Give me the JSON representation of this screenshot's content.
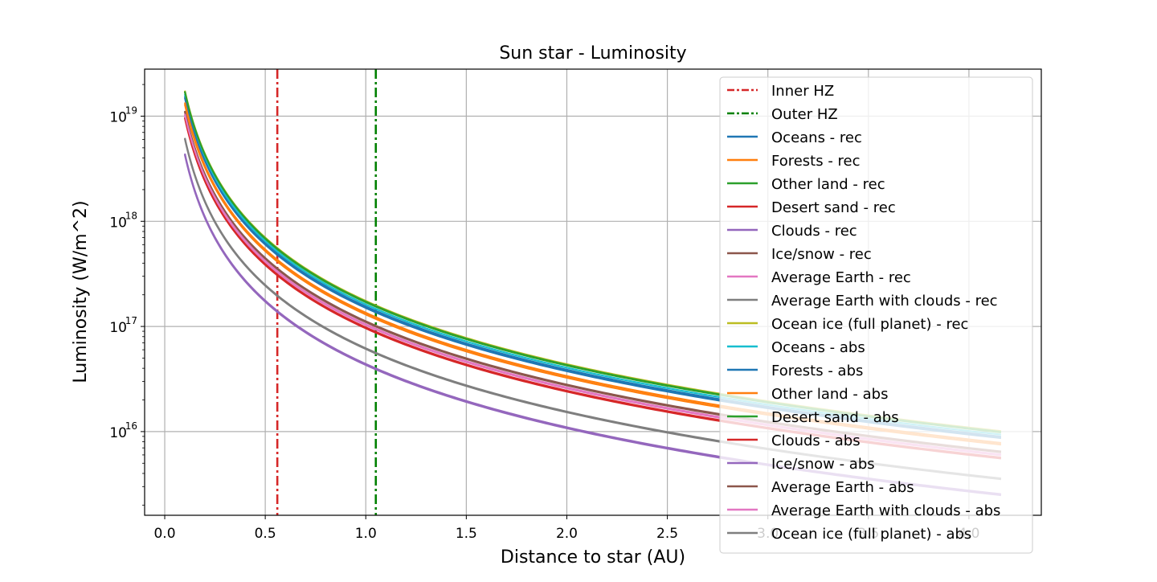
{
  "chart_data": {
    "type": "line",
    "title": "Sun star - Luminosity",
    "xlabel": "Distance to star (AU)",
    "ylabel": "Luminosity (W/m^2)",
    "xlim": [
      -0.1,
      4.36
    ],
    "ylim": [
      1600000000000000.0,
      2.8e+19
    ],
    "yscale": "log",
    "grid": true,
    "legend_position": "top-right",
    "x_ticks": [
      0,
      0.5,
      1.0,
      1.5,
      2.0,
      2.5,
      3.0,
      3.5,
      4.0
    ],
    "x_tick_labels": [
      "0.0",
      "0.5",
      "1.0",
      "1.5",
      "2.0",
      "2.5",
      "3.0",
      "3.5",
      "4.0"
    ],
    "y_ticks": [
      1e+16,
      1e+17,
      1e+18,
      1e+19
    ],
    "y_tick_labels": [
      {
        "base": "10",
        "exp": "16"
      },
      {
        "base": "10",
        "exp": "17"
      },
      {
        "base": "10",
        "exp": "18"
      },
      {
        "base": "10",
        "exp": "19"
      }
    ],
    "vlines": [
      {
        "name": "Inner HZ",
        "x": 0.56,
        "color": "#d62728",
        "style": "dashdot"
      },
      {
        "name": "Outer HZ",
        "x": 1.05,
        "color": "#008000",
        "style": "dashdot"
      }
    ],
    "curve_model": "y = a / x^2",
    "x_range": [
      0.1,
      4.16
    ],
    "series": [
      {
        "name": "Oceans - rec",
        "color": "#1f77b4",
        "a": 1.55e+17
      },
      {
        "name": "Forests - rec",
        "color": "#ff7f0e",
        "a": 1.3e+17
      },
      {
        "name": "Other land - rec",
        "color": "#2ca02c",
        "a": 1.7e+17
      },
      {
        "name": "Desert sand - rec",
        "color": "#d62728",
        "a": 9.8e+16
      },
      {
        "name": "Clouds - rec",
        "color": "#9467bd",
        "a": 4.4e+16
      },
      {
        "name": "Ice/snow - rec",
        "color": "#8c564b",
        "a": 1.1e+17
      },
      {
        "name": "Average Earth - rec",
        "color": "#e377c2",
        "a": 1.03e+17
      },
      {
        "name": "Average Earth with clouds - rec",
        "color": "#7f7f7f",
        "a": 6.2e+16
      },
      {
        "name": "Ocean ice (full planet) - rec",
        "color": "#bcbd22",
        "a": 1.75e+17
      },
      {
        "name": "Oceans - abs",
        "color": "#17becf",
        "a": 1.62e+17
      },
      {
        "name": "Forests - abs",
        "color": "#1f77b4",
        "a": 1.5e+17
      },
      {
        "name": "Other land - abs",
        "color": "#ff7f0e",
        "a": 1.35e+17
      },
      {
        "name": "Desert sand - abs",
        "color": "#2ca02c",
        "a": 1.72e+17
      },
      {
        "name": "Clouds - abs",
        "color": "#d62728",
        "a": 9.6e+16
      },
      {
        "name": "Ice/snow - abs",
        "color": "#9467bd",
        "a": 4.3e+16
      },
      {
        "name": "Average Earth - abs",
        "color": "#8c564b",
        "a": 1.12e+17
      },
      {
        "name": "Average Earth with clouds - abs",
        "color": "#e377c2",
        "a": 1.05e+17
      },
      {
        "name": "Ocean ice (full planet) - abs",
        "color": "#7f7f7f",
        "a": 6.1e+16
      }
    ]
  }
}
